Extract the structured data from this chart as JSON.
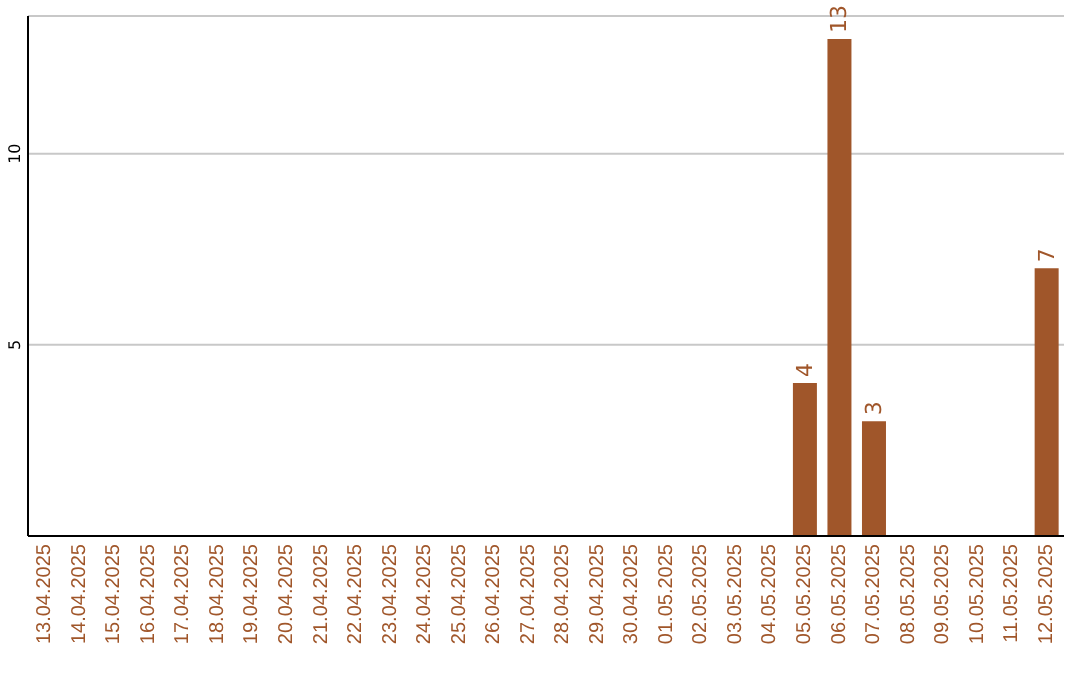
{
  "chart_data": {
    "type": "bar",
    "categories": [
      "13.04.2025",
      "14.04.2025",
      "15.04.2025",
      "16.04.2025",
      "17.04.2025",
      "18.04.2025",
      "19.04.2025",
      "20.04.2025",
      "21.04.2025",
      "22.04.2025",
      "23.04.2025",
      "24.04.2025",
      "25.04.2025",
      "26.04.2025",
      "27.04.2025",
      "28.04.2025",
      "29.04.2025",
      "30.04.2025",
      "01.05.2025",
      "02.05.2025",
      "03.05.2025",
      "04.05.2025",
      "05.05.2025",
      "06.05.2025",
      "07.05.2025",
      "08.05.2025",
      "09.05.2025",
      "10.05.2025",
      "11.05.2025",
      "12.05.2025"
    ],
    "values": [
      0,
      0,
      0,
      0,
      0,
      0,
      0,
      0,
      0,
      0,
      0,
      0,
      0,
      0,
      0,
      0,
      0,
      0,
      0,
      0,
      0,
      0,
      4,
      13,
      3,
      0,
      0,
      0,
      0,
      7
    ],
    "value_labels": [
      null,
      null,
      null,
      null,
      null,
      null,
      null,
      null,
      null,
      null,
      null,
      null,
      null,
      null,
      null,
      null,
      null,
      null,
      null,
      null,
      null,
      null,
      "4",
      "13",
      "3",
      null,
      null,
      null,
      null,
      "7"
    ],
    "color": "#a0562a",
    "ylim": [
      0,
      13.6
    ],
    "yticks": [
      5,
      10
    ],
    "grid": "y"
  }
}
